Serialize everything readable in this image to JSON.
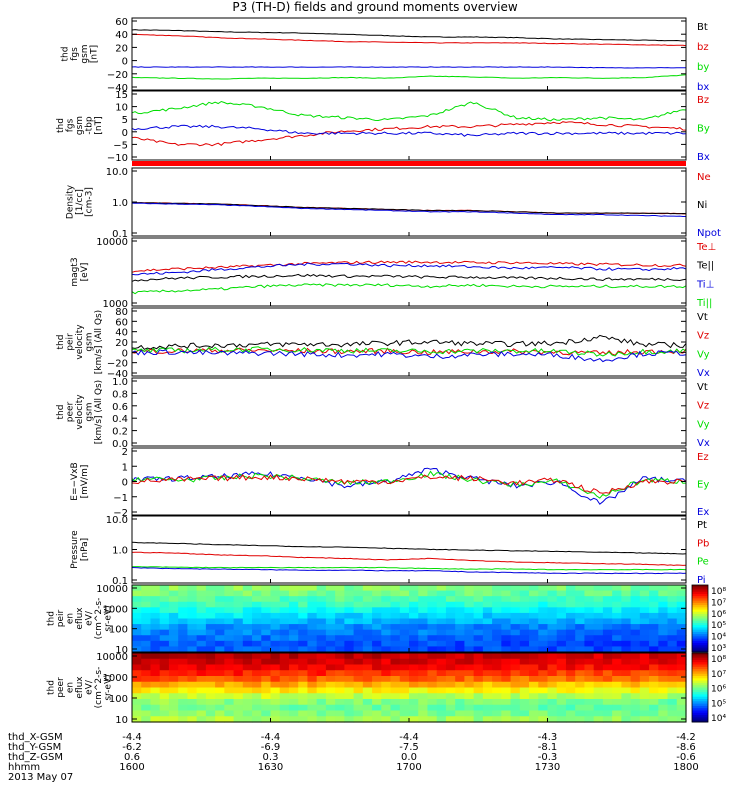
{
  "title": "P3 (TH-D) fields and ground moments overview",
  "colors": {
    "black": "#000000",
    "red": "#e00000",
    "green": "#00dd00",
    "blue": "#0000dd"
  },
  "chart_data": [
    {
      "id": "fgs_gsm",
      "type": "line",
      "ylabels": [
        "thd",
        "fgs",
        "gsm",
        "[nT]"
      ],
      "yticks": [
        "60",
        "40",
        "20",
        "0",
        "−20",
        "−40"
      ],
      "ylim": [
        -45,
        65
      ],
      "legend": [
        {
          "text": "Bt",
          "color": "black"
        },
        {
          "text": "bz",
          "color": "red"
        },
        {
          "text": "by",
          "color": "green"
        },
        {
          "text": "bx",
          "color": "blue"
        }
      ],
      "series": [
        {
          "color": "black",
          "values": [
            47,
            46,
            44,
            43,
            42,
            40,
            38,
            36,
            36,
            35,
            33,
            32,
            31,
            30
          ]
        },
        {
          "color": "red",
          "values": [
            40,
            38,
            35,
            33,
            31,
            29,
            28,
            27,
            27,
            27,
            26,
            25,
            24,
            23
          ]
        },
        {
          "color": "green",
          "values": [
            -26,
            -27,
            -28,
            -27,
            -27,
            -26,
            -27,
            -24,
            -25,
            -27,
            -26,
            -27,
            -26,
            -22
          ]
        },
        {
          "color": "blue",
          "values": [
            -10,
            -10,
            -10,
            -10,
            -10,
            -10,
            -10,
            -10,
            -10,
            -10,
            -10,
            -11,
            -11,
            -11
          ]
        }
      ]
    },
    {
      "id": "fgs_gsm_tbp",
      "type": "line",
      "ylabels": [
        "thd",
        "fgs",
        "gsm",
        "-tbp",
        "[nT]"
      ],
      "yticks": [
        "15",
        "10",
        "5",
        "0",
        "−5",
        "−10"
      ],
      "ylim": [
        -13,
        18
      ],
      "legend": [
        {
          "text": "Bz",
          "color": "red"
        },
        {
          "text": "By",
          "color": "green"
        },
        {
          "text": "Bx",
          "color": "blue"
        }
      ],
      "series": [
        {
          "color": "red",
          "values": [
            -3,
            -6,
            -6,
            -4,
            -2,
            0,
            1,
            2,
            2,
            3,
            4,
            3,
            2,
            1
          ]
        },
        {
          "color": "green",
          "values": [
            8,
            10,
            13,
            11,
            7,
            6,
            5,
            7,
            13,
            6,
            5,
            6,
            5,
            10
          ]
        },
        {
          "color": "blue",
          "values": [
            1,
            2,
            2,
            1,
            -1,
            -1,
            -1,
            -1,
            -2,
            -1,
            -1,
            -1,
            -1,
            -1
          ]
        }
      ]
    },
    {
      "id": "density",
      "type": "line",
      "log": true,
      "ylabels": [
        "Density",
        "[1/cc]",
        "[cm-3]"
      ],
      "yticks": [
        "10.0",
        "1.0",
        "0.1"
      ],
      "ylim": [
        0.1,
        12
      ],
      "legend": [
        {
          "text": "Ne",
          "color": "red"
        },
        {
          "text": "Ni",
          "color": "black"
        },
        {
          "text": "Npot",
          "color": "blue"
        }
      ],
      "series": [
        {
          "color": "red",
          "values": [
            1.05,
            1.0,
            0.95,
            0.85,
            0.75,
            0.7,
            0.65,
            0.6,
            0.6,
            0.55,
            0.5,
            0.5,
            0.5,
            0.48
          ]
        },
        {
          "color": "black",
          "values": [
            1.05,
            1.0,
            0.95,
            0.85,
            0.75,
            0.7,
            0.65,
            0.6,
            0.6,
            0.55,
            0.5,
            0.5,
            0.5,
            0.48
          ]
        },
        {
          "color": "blue",
          "values": [
            1.0,
            0.95,
            0.9,
            0.8,
            0.7,
            0.65,
            0.6,
            0.55,
            0.55,
            0.5,
            0.45,
            0.45,
            0.42,
            0.4
          ]
        }
      ]
    },
    {
      "id": "temperature",
      "type": "line",
      "log": true,
      "ylabels": [
        "magt3",
        "[eV]"
      ],
      "yticks": [
        "10000",
        "1000"
      ],
      "ylim": [
        900,
        12000
      ],
      "legend": [
        {
          "text": "Te⊥",
          "color": "red"
        },
        {
          "text": "Te||",
          "color": "black"
        },
        {
          "text": "Ti⊥",
          "color": "blue"
        },
        {
          "text": "Ti||",
          "color": "green"
        }
      ],
      "series": [
        {
          "color": "red",
          "values": [
            3400,
            3700,
            3900,
            4200,
            4500,
            4700,
            4800,
            4800,
            4700,
            4700,
            4500,
            4400,
            4300,
            4200
          ]
        },
        {
          "color": "black",
          "values": [
            2400,
            2600,
            2700,
            2800,
            2900,
            2800,
            2800,
            2700,
            2700,
            2600,
            2600,
            2500,
            2500,
            2500
          ]
        },
        {
          "color": "blue",
          "values": [
            3000,
            3200,
            3600,
            4000,
            4400,
            4500,
            4200,
            4200,
            4000,
            3800,
            3900,
            3700,
            3600,
            3800
          ]
        },
        {
          "color": "green",
          "values": [
            1500,
            1600,
            1700,
            1900,
            2000,
            2000,
            2000,
            1900,
            2000,
            1900,
            1900,
            1900,
            1900,
            1900
          ]
        }
      ]
    },
    {
      "id": "peir_velocity",
      "type": "line",
      "ylabels": [
        "thd",
        "peir",
        "velocity",
        "gsm",
        "[km/s] (All Qs)"
      ],
      "yticks": [
        "80",
        "60",
        "40",
        "20",
        "0",
        "−20",
        "−40"
      ],
      "ylim": [
        -45,
        85
      ],
      "legend": [
        {
          "text": "Vt",
          "color": "black"
        },
        {
          "text": "Vz",
          "color": "red"
        },
        {
          "text": "Vy",
          "color": "green"
        },
        {
          "text": "Vx",
          "color": "blue"
        }
      ],
      "series": [
        {
          "color": "black",
          "values": [
            10,
            12,
            14,
            15,
            16,
            15,
            18,
            20,
            17,
            16,
            18,
            30,
            15,
            14
          ]
        },
        {
          "color": "red",
          "values": [
            2,
            3,
            4,
            4,
            3,
            2,
            3,
            0,
            2,
            2,
            1,
            -2,
            2,
            3
          ]
        },
        {
          "color": "green",
          "values": [
            3,
            4,
            5,
            6,
            5,
            4,
            3,
            2,
            3,
            3,
            2,
            -4,
            2,
            3
          ]
        },
        {
          "color": "blue",
          "values": [
            0,
            1,
            -2,
            -1,
            -3,
            -5,
            -3,
            -8,
            -4,
            -3,
            -5,
            -15,
            -2,
            -1
          ]
        }
      ]
    },
    {
      "id": "peer_velocity",
      "type": "line",
      "ylabels": [
        "thd",
        "peer",
        "velocity",
        "gsm",
        "[km/s] (All Qs)"
      ],
      "yticks": [
        "1.0",
        "0.8",
        "0.6",
        "0.4",
        "0.2",
        "0.0"
      ],
      "ylim": [
        0,
        1
      ],
      "legend": [
        {
          "text": "Vt",
          "color": "black"
        },
        {
          "text": "Vz",
          "color": "red"
        },
        {
          "text": "Vy",
          "color": "green"
        },
        {
          "text": "Vx",
          "color": "blue"
        }
      ],
      "series": []
    },
    {
      "id": "efield",
      "type": "line",
      "ylabels": [
        "E=−VxB",
        "[mV/m]"
      ],
      "yticks": [
        "2",
        "1",
        "0",
        "−1",
        "−2"
      ],
      "ylim": [
        -2.2,
        2.2
      ],
      "legend": [
        {
          "text": "Ez",
          "color": "red"
        },
        {
          "text": "Ey",
          "color": "green"
        },
        {
          "text": "Ex",
          "color": "blue"
        }
      ],
      "series": [
        {
          "color": "blue",
          "values": [
            0.1,
            0.2,
            0.3,
            0.5,
            0.3,
            -0.3,
            0.0,
            0.8,
            0.2,
            -0.3,
            0.0,
            -1.5,
            0.2,
            0.0
          ]
        },
        {
          "color": "green",
          "values": [
            0.2,
            0.1,
            0.2,
            0.4,
            0.2,
            -0.1,
            0.0,
            0.5,
            0.1,
            -0.2,
            0.0,
            -1.0,
            0.1,
            0.0
          ]
        },
        {
          "color": "red",
          "values": [
            0.0,
            0.1,
            0.2,
            0.3,
            0.2,
            0.0,
            0.0,
            0.3,
            0.2,
            -0.1,
            0.1,
            -0.8,
            0.0,
            0.0
          ]
        }
      ]
    },
    {
      "id": "pressure",
      "type": "line",
      "log": true,
      "ylabels": [
        "Pressure",
        "[nPa]"
      ],
      "yticks": [
        "10.0",
        "1.0",
        "0.1"
      ],
      "ylim": [
        0.1,
        12
      ],
      "legend": [
        {
          "text": "Pt",
          "color": "black"
        },
        {
          "text": "Pb",
          "color": "red"
        },
        {
          "text": "Pe",
          "color": "green"
        },
        {
          "text": "Pi",
          "color": "blue"
        }
      ],
      "series": [
        {
          "color": "black",
          "values": [
            1.8,
            1.7,
            1.55,
            1.45,
            1.35,
            1.3,
            1.2,
            1.1,
            1.05,
            1.0,
            0.95,
            0.9,
            0.85,
            0.8
          ]
        },
        {
          "color": "red",
          "values": [
            0.9,
            0.85,
            0.75,
            0.7,
            0.62,
            0.58,
            0.52,
            0.58,
            0.5,
            0.45,
            0.42,
            0.4,
            0.38,
            0.35
          ]
        },
        {
          "color": "green",
          "values": [
            0.32,
            0.31,
            0.3,
            0.3,
            0.3,
            0.3,
            0.3,
            0.28,
            0.27,
            0.27,
            0.26,
            0.26,
            0.26,
            0.26
          ]
        },
        {
          "color": "blue",
          "values": [
            0.3,
            0.28,
            0.27,
            0.26,
            0.25,
            0.25,
            0.24,
            0.24,
            0.22,
            0.21,
            0.2,
            0.2,
            0.2,
            0.2
          ]
        }
      ]
    },
    {
      "id": "peir_spectrogram",
      "type": "heatmap",
      "ylabels": [
        "thd",
        "peir",
        "en",
        "eflux",
        "eV/",
        "(cm^2-s-",
        "sr-eV)"
      ],
      "yticks": [
        "10000",
        "1000",
        "100",
        "10"
      ],
      "ylim": [
        5,
        20000
      ],
      "colorbar": [
        "10⁸",
        "10⁷",
        "10⁶",
        "10⁵",
        "10⁴",
        "10³"
      ],
      "levels_by_energy_row": [
        0.52,
        0.5,
        0.47,
        0.44,
        0.4,
        0.36,
        0.32,
        0.28,
        0.26,
        0.24,
        0.22,
        0.22
      ]
    },
    {
      "id": "peer_spectrogram",
      "type": "heatmap",
      "ylabels": [
        "thd",
        "peer",
        "en",
        "eflux",
        "eV/",
        "(cm^2-s-",
        "sr-eV)"
      ],
      "yticks": [
        "10000",
        "1000",
        "100",
        "10"
      ],
      "ylim": [
        5,
        20000
      ],
      "colorbar": [
        "10⁸",
        "10⁷",
        "10⁶",
        "10⁵",
        "10⁴"
      ],
      "levels_by_energy_row": [
        0.95,
        0.93,
        0.9,
        0.85,
        0.8,
        0.72,
        0.65,
        0.58,
        0.52,
        0.5,
        0.52,
        0.55
      ]
    }
  ],
  "xaxis": {
    "row_labels": [
      "thd_X-GSM",
      "thd_Y-GSM",
      "thd_Z-GSM",
      "hhmm",
      "2013 May 07"
    ],
    "ticks": [
      {
        "x": "-4.4",
        "y": "-6.2",
        "z": "0.6",
        "t": "1600"
      },
      {
        "x": "-4.4",
        "y": "-6.9",
        "z": "0.3",
        "t": "1630"
      },
      {
        "x": "-4.4",
        "y": "-7.5",
        "z": "0.0",
        "t": "1700"
      },
      {
        "x": "-4.3",
        "y": "-8.1",
        "z": "-0.3",
        "t": "1730"
      },
      {
        "x": "-4.2",
        "y": "-8.6",
        "z": "-0.6",
        "t": "1800"
      }
    ]
  }
}
